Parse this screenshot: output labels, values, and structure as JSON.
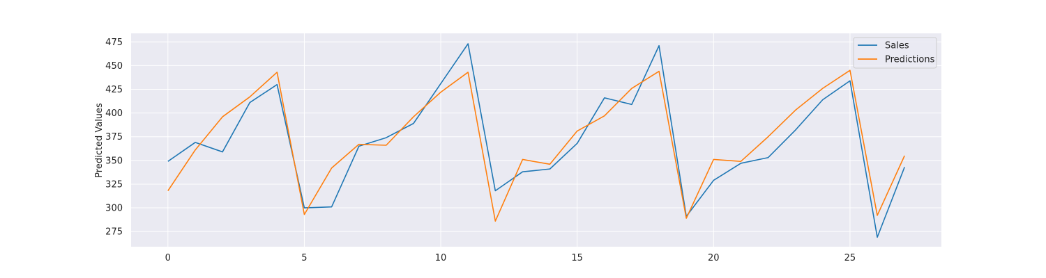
{
  "chart_data": {
    "type": "line",
    "title": "",
    "xlabel": "",
    "ylabel": "Predicted Values",
    "xlim": [
      -1.35,
      28.35
    ],
    "ylim": [
      259,
      484
    ],
    "xticks": [
      0,
      5,
      10,
      15,
      20,
      25
    ],
    "yticks": [
      275,
      300,
      325,
      350,
      375,
      400,
      425,
      450,
      475
    ],
    "grid": true,
    "legend_position": "top-right",
    "x": [
      0,
      1,
      2,
      3,
      4,
      5,
      6,
      7,
      8,
      9,
      10,
      11,
      12,
      13,
      14,
      15,
      16,
      17,
      18,
      19,
      20,
      21,
      22,
      23,
      24,
      25,
      26,
      27
    ],
    "series": [
      {
        "name": "Sales",
        "color": "#1f77b4",
        "values": [
          349,
          369,
          359,
          411,
          430,
          300,
          301,
          365,
          374,
          389,
          431,
          473,
          318,
          338,
          341,
          368,
          416,
          409,
          471,
          291,
          329,
          347,
          353,
          382,
          414,
          434,
          269,
          343
        ]
      },
      {
        "name": "Predictions",
        "color": "#ff7f0e",
        "values": [
          318,
          361,
          396,
          417,
          443,
          293,
          342,
          367,
          366,
          396,
          422,
          443,
          286,
          351,
          346,
          381,
          397,
          426,
          444,
          289,
          351,
          349,
          375,
          403,
          426,
          445,
          292,
          355
        ]
      }
    ]
  }
}
